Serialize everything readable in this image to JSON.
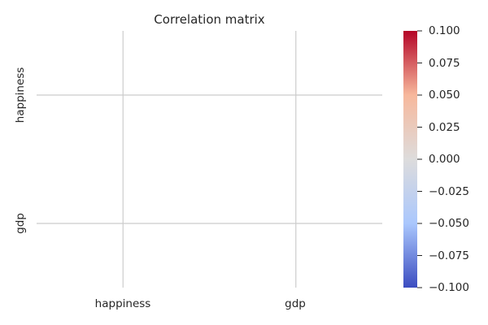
{
  "chart_data": {
    "type": "heatmap",
    "title": "Correlation matrix",
    "x_categories": [
      "happiness",
      "gdp"
    ],
    "y_categories": [
      "happiness",
      "gdp"
    ],
    "values": [
      [
        null,
        null
      ],
      [
        null,
        null
      ]
    ],
    "colormap": "coolwarm",
    "colorbar": {
      "min": -0.1,
      "max": 0.1,
      "ticks": [
        "0.100",
        "0.075",
        "0.050",
        "0.025",
        "0.000",
        "−0.025",
        "−0.050",
        "−0.075",
        "−0.100"
      ],
      "colors": [
        "#b40426",
        "#f7b89c",
        "#dddcdc",
        "#aac7fd",
        "#3b4cc0"
      ]
    },
    "grid": true,
    "grid_color": "#cccccc"
  }
}
